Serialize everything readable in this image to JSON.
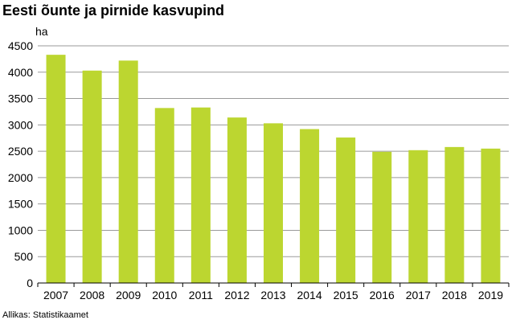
{
  "title": "Eesti õunte ja pirnide kasvupind",
  "source": "Allikas: Statistikaamet",
  "colors": {
    "bar": "#BCD630",
    "grid": "#9A9A9A",
    "axis": "#000000"
  },
  "chart_data": {
    "type": "bar",
    "title": "Eesti õunte ja pirnide kasvupind",
    "ylabel": "ha",
    "xlabel": "",
    "ylim": [
      0,
      4500
    ],
    "yticks": [
      0,
      500,
      1000,
      1500,
      2000,
      2500,
      3000,
      3500,
      4000,
      4500
    ],
    "grid": true,
    "categories": [
      "2007",
      "2008",
      "2009",
      "2010",
      "2011",
      "2012",
      "2013",
      "2014",
      "2015",
      "2016",
      "2017",
      "2018",
      "2019"
    ],
    "values": [
      4330,
      4030,
      4220,
      3320,
      3330,
      3140,
      3030,
      2920,
      2760,
      2490,
      2520,
      2580,
      2550
    ]
  }
}
